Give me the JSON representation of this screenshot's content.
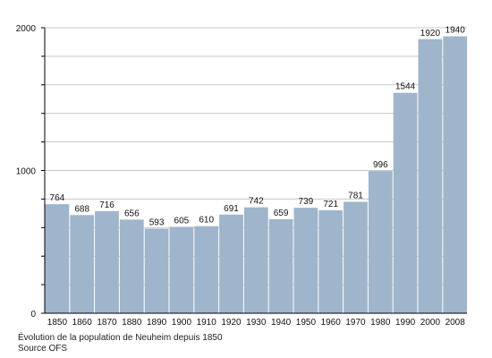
{
  "chart_data": {
    "type": "bar",
    "categories": [
      "1850",
      "1860",
      "1870",
      "1880",
      "1890",
      "1900",
      "1910",
      "1920",
      "1930",
      "1940",
      "1950",
      "1960",
      "1970",
      "1980",
      "1990",
      "2000",
      "2008"
    ],
    "values": [
      764,
      688,
      716,
      656,
      593,
      605,
      610,
      691,
      742,
      659,
      739,
      721,
      781,
      996,
      1544,
      1920,
      1940
    ],
    "data_labels": [
      "764",
      "688",
      "716",
      "656",
      "593",
      "605",
      "610",
      "691",
      "742",
      "659",
      "739",
      "721",
      "781",
      "996",
      "1544",
      "1920",
      "1940"
    ],
    "title": "",
    "xlabel": "",
    "ylabel": "",
    "ylim": [
      0,
      2000
    ],
    "yticks": [
      "0",
      "1000",
      "2000"
    ],
    "grid": true,
    "legend": "none",
    "bar_color": "#9fb5cc",
    "grid_color": "#c8c8c8"
  },
  "caption": {
    "line1": "Évolution de la population de Neuheim depuis 1850",
    "line2": "Source OFS"
  }
}
